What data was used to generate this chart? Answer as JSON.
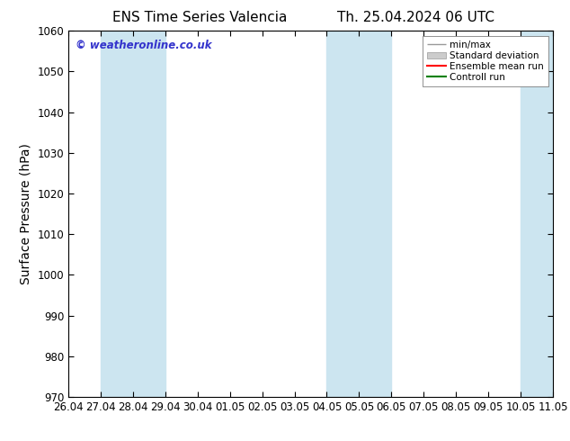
{
  "title_left": "ENS Time Series Valencia",
  "title_right": "Th. 25.04.2024 06 UTC",
  "ylabel": "Surface Pressure (hPa)",
  "ylim": [
    970,
    1060
  ],
  "yticks": [
    970,
    980,
    990,
    1000,
    1010,
    1020,
    1030,
    1040,
    1050,
    1060
  ],
  "x_start": "2024-04-26",
  "x_end": "2024-05-11",
  "xtick_labels": [
    "26.04",
    "27.04",
    "28.04",
    "29.04",
    "30.04",
    "01.05",
    "02.05",
    "03.05",
    "04.05",
    "05.05",
    "06.05",
    "07.05",
    "08.05",
    "09.05",
    "10.05",
    "11.05"
  ],
  "shaded_regions": [
    {
      "x0": "2024-04-27",
      "x1": "2024-04-29",
      "color": "#cce5f0"
    },
    {
      "x0": "2024-05-04",
      "x1": "2024-05-06",
      "color": "#cce5f0"
    },
    {
      "x0": "2024-05-10",
      "x1": "2024-05-12",
      "color": "#cce5f0"
    }
  ],
  "watermark": "© weatheronline.co.uk",
  "watermark_color": "#3333cc",
  "background_color": "#ffffff",
  "plot_bg_color": "#ffffff",
  "legend_entries": [
    "min/max",
    "Standard deviation",
    "Ensemble mean run",
    "Controll run"
  ],
  "legend_colors": [
    "#999999",
    "#cccccc",
    "#ff0000",
    "#008000"
  ],
  "title_fontsize": 11,
  "axis_label_fontsize": 10,
  "tick_fontsize": 8.5
}
